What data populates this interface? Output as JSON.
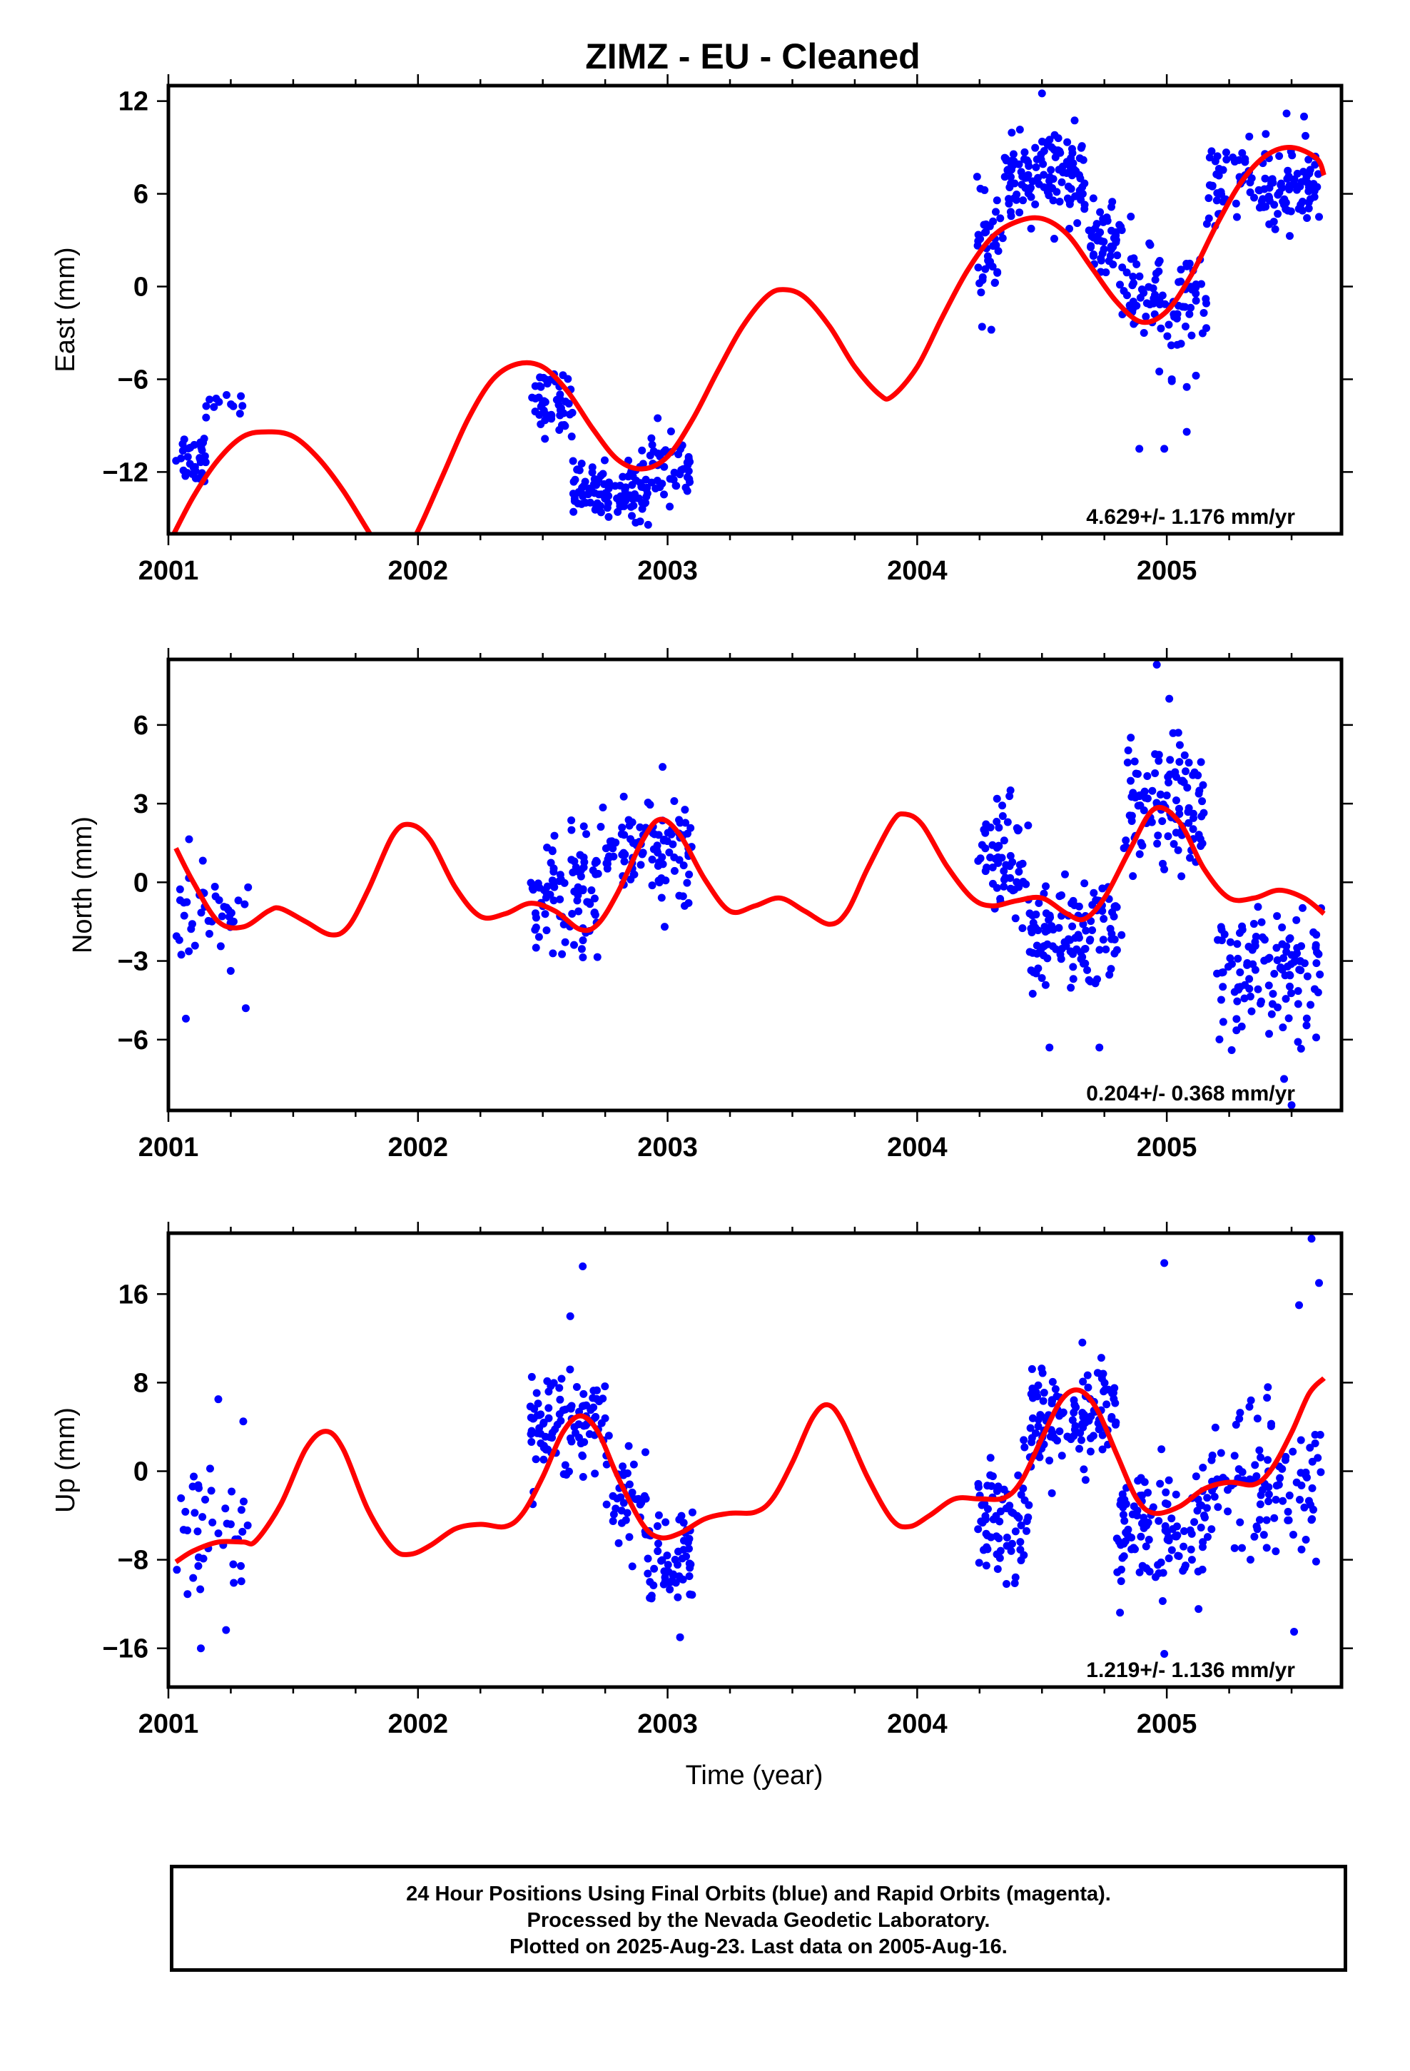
{
  "title": "ZIMZ  - EU - Cleaned",
  "chart_data": [
    {
      "type": "scatter",
      "name": "east",
      "ylabel": "East (mm)",
      "xlabel": "",
      "xlim": [
        2001.0,
        2005.7
      ],
      "ylim": [
        -16,
        13
      ],
      "yticks": [
        -12,
        -6,
        0,
        6,
        12
      ],
      "xticks": [
        2001,
        2002,
        2003,
        2004,
        2005
      ],
      "rate_label": "4.629+/- 1.176 mm/yr",
      "data_clusters": [
        {
          "x_start": 2001.03,
          "x_end": 2001.15,
          "y_center": -11.0,
          "y_spread": 1.2,
          "n": 32
        },
        {
          "x_start": 2001.15,
          "x_end": 2001.32,
          "y_center": -7.5,
          "y_spread": 0.8,
          "n": 12
        },
        {
          "x_start": 2002.45,
          "x_end": 2002.62,
          "y_center": -7.5,
          "y_spread": 1.3,
          "n": 50
        },
        {
          "x_start": 2002.62,
          "x_end": 2002.92,
          "y_center": -13.2,
          "y_spread": 1.2,
          "n": 110
        },
        {
          "x_start": 2002.92,
          "x_end": 2003.1,
          "y_center": -11.5,
          "y_spread": 1.5,
          "n": 45
        },
        {
          "x_start": 2004.24,
          "x_end": 2004.35,
          "y_center": 2.0,
          "y_spread": 2.5,
          "n": 40
        },
        {
          "x_start": 2004.35,
          "x_end": 2004.68,
          "y_center": 7.0,
          "y_spread": 1.8,
          "n": 130
        },
        {
          "x_start": 2004.68,
          "x_end": 2004.82,
          "y_center": 3.0,
          "y_spread": 1.5,
          "n": 50
        },
        {
          "x_start": 2004.82,
          "x_end": 2005.16,
          "y_center": -1.0,
          "y_spread": 2.4,
          "n": 90
        },
        {
          "x_start": 2005.16,
          "x_end": 2005.62,
          "y_center": 6.5,
          "y_spread": 1.8,
          "n": 130
        }
      ],
      "outliers": [
        [
          2004.5,
          12.5
        ],
        [
          2004.89,
          -10.5
        ],
        [
          2004.99,
          -10.5
        ],
        [
          2005.08,
          -9.4
        ],
        [
          2005.08,
          -6.5
        ],
        [
          2005.02,
          -6.0
        ],
        [
          2004.97,
          -5.5
        ],
        [
          2005.55,
          11.0
        ],
        [
          2005.48,
          11.2
        ],
        [
          2004.26,
          -2.6
        ]
      ],
      "model_curve": [
        [
          2001.0,
          -16.7
        ],
        [
          2001.1,
          -13.6
        ],
        [
          2001.2,
          -11.2
        ],
        [
          2001.3,
          -9.7
        ],
        [
          2001.4,
          -9.4
        ],
        [
          2001.5,
          -9.7
        ],
        [
          2001.6,
          -11.1
        ],
        [
          2001.7,
          -13.2
        ],
        [
          2001.8,
          -15.8
        ],
        [
          2001.85,
          -17.0
        ],
        [
          2001.95,
          -17.0
        ],
        [
          2002.0,
          -15.8
        ],
        [
          2002.1,
          -12.2
        ],
        [
          2002.2,
          -8.6
        ],
        [
          2002.3,
          -6.0
        ],
        [
          2002.4,
          -5.0
        ],
        [
          2002.5,
          -5.2
        ],
        [
          2002.6,
          -6.8
        ],
        [
          2002.7,
          -9.2
        ],
        [
          2002.8,
          -11.2
        ],
        [
          2002.9,
          -11.8
        ],
        [
          2003.0,
          -11.0
        ],
        [
          2003.1,
          -8.6
        ],
        [
          2003.2,
          -5.5
        ],
        [
          2003.3,
          -2.6
        ],
        [
          2003.4,
          -0.6
        ],
        [
          2003.47,
          -0.2
        ],
        [
          2003.55,
          -0.7
        ],
        [
          2003.65,
          -2.6
        ],
        [
          2003.75,
          -5.2
        ],
        [
          2003.85,
          -7.0
        ],
        [
          2003.9,
          -7.1
        ],
        [
          2004.0,
          -5.2
        ],
        [
          2004.1,
          -2.0
        ],
        [
          2004.2,
          1.0
        ],
        [
          2004.3,
          3.2
        ],
        [
          2004.4,
          4.2
        ],
        [
          2004.5,
          4.4
        ],
        [
          2004.6,
          3.4
        ],
        [
          2004.7,
          1.2
        ],
        [
          2004.8,
          -1.0
        ],
        [
          2004.9,
          -2.3
        ],
        [
          2005.0,
          -1.6
        ],
        [
          2005.1,
          0.8
        ],
        [
          2005.2,
          4.0
        ],
        [
          2005.3,
          6.8
        ],
        [
          2005.4,
          8.5
        ],
        [
          2005.5,
          9.0
        ],
        [
          2005.6,
          8.3
        ],
        [
          2005.63,
          7.2
        ]
      ]
    },
    {
      "type": "scatter",
      "name": "north",
      "ylabel": "North (mm)",
      "xlabel": "",
      "xlim": [
        2001.0,
        2005.7
      ],
      "ylim": [
        -8.7,
        8.5
      ],
      "yticks": [
        -6,
        -3,
        0,
        3,
        6
      ],
      "xticks": [
        2001,
        2002,
        2003,
        2004,
        2005
      ],
      "rate_label": "0.204+/- 0.368 mm/yr",
      "data_clusters": [
        {
          "x_start": 2001.03,
          "x_end": 2001.32,
          "y_center": -1.2,
          "y_spread": 1.2,
          "n": 40
        },
        {
          "x_start": 2002.45,
          "x_end": 2002.72,
          "y_center": -0.5,
          "y_spread": 1.5,
          "n": 90
        },
        {
          "x_start": 2002.72,
          "x_end": 2003.1,
          "y_center": 1.3,
          "y_spread": 1.4,
          "n": 110
        },
        {
          "x_start": 2004.24,
          "x_end": 2004.45,
          "y_center": 1.0,
          "y_spread": 1.4,
          "n": 60
        },
        {
          "x_start": 2004.45,
          "x_end": 2004.82,
          "y_center": -2.2,
          "y_spread": 1.5,
          "n": 120
        },
        {
          "x_start": 2004.82,
          "x_end": 2005.15,
          "y_center": 2.8,
          "y_spread": 1.7,
          "n": 110
        },
        {
          "x_start": 2005.2,
          "x_end": 2005.62,
          "y_center": -3.4,
          "y_spread": 1.5,
          "n": 120
        }
      ],
      "outliers": [
        [
          2001.07,
          -5.2
        ],
        [
          2001.31,
          -4.8
        ],
        [
          2004.96,
          8.3
        ],
        [
          2004.53,
          -6.3
        ],
        [
          2004.73,
          -6.3
        ],
        [
          2005.5,
          -8.5
        ],
        [
          2005.47,
          -7.5
        ],
        [
          2005.26,
          -6.4
        ],
        [
          2005.01,
          7.0
        ],
        [
          2002.98,
          4.4
        ]
      ],
      "model_curve": [
        [
          2001.03,
          1.3
        ],
        [
          2001.1,
          0.0
        ],
        [
          2001.2,
          -1.5
        ],
        [
          2001.3,
          -1.7
        ],
        [
          2001.4,
          -1.1
        ],
        [
          2001.45,
          -1.0
        ],
        [
          2001.55,
          -1.5
        ],
        [
          2001.65,
          -2.0
        ],
        [
          2001.72,
          -1.7
        ],
        [
          2001.8,
          -0.3
        ],
        [
          2001.9,
          1.8
        ],
        [
          2001.97,
          2.2
        ],
        [
          2002.05,
          1.6
        ],
        [
          2002.15,
          -0.2
        ],
        [
          2002.25,
          -1.3
        ],
        [
          2002.35,
          -1.2
        ],
        [
          2002.45,
          -0.8
        ],
        [
          2002.55,
          -1.1
        ],
        [
          2002.65,
          -1.8
        ],
        [
          2002.72,
          -1.6
        ],
        [
          2002.8,
          -0.4
        ],
        [
          2002.9,
          1.6
        ],
        [
          2002.97,
          2.4
        ],
        [
          2003.05,
          1.8
        ],
        [
          2003.15,
          0.1
        ],
        [
          2003.25,
          -1.1
        ],
        [
          2003.35,
          -0.9
        ],
        [
          2003.45,
          -0.6
        ],
        [
          2003.55,
          -1.1
        ],
        [
          2003.65,
          -1.6
        ],
        [
          2003.72,
          -1.1
        ],
        [
          2003.8,
          0.5
        ],
        [
          2003.9,
          2.3
        ],
        [
          2003.95,
          2.6
        ],
        [
          2004.02,
          2.2
        ],
        [
          2004.12,
          0.6
        ],
        [
          2004.22,
          -0.6
        ],
        [
          2004.3,
          -0.9
        ],
        [
          2004.4,
          -0.7
        ],
        [
          2004.5,
          -0.6
        ],
        [
          2004.6,
          -1.2
        ],
        [
          2004.67,
          -1.4
        ],
        [
          2004.75,
          -0.6
        ],
        [
          2004.85,
          1.2
        ],
        [
          2004.95,
          2.8
        ],
        [
          2005.05,
          2.3
        ],
        [
          2005.15,
          0.5
        ],
        [
          2005.25,
          -0.6
        ],
        [
          2005.35,
          -0.6
        ],
        [
          2005.45,
          -0.3
        ],
        [
          2005.55,
          -0.6
        ],
        [
          2005.63,
          -1.2
        ]
      ]
    },
    {
      "type": "scatter",
      "name": "up",
      "ylabel": "Up (mm)",
      "xlabel": "Time (year)",
      "xlim": [
        2001.0,
        2005.7
      ],
      "ylim": [
        -19.5,
        21.5
      ],
      "yticks": [
        -16,
        -8,
        0,
        8,
        16
      ],
      "xticks": [
        2001,
        2002,
        2003,
        2004,
        2005
      ],
      "rate_label": "1.219+/- 1.136 mm/yr",
      "data_clusters": [
        {
          "x_start": 2001.03,
          "x_end": 2001.32,
          "y_center": -6.5,
          "y_spread": 4.0,
          "n": 40
        },
        {
          "x_start": 2002.45,
          "x_end": 2002.75,
          "y_center": 4.5,
          "y_spread": 3.0,
          "n": 100
        },
        {
          "x_start": 2002.75,
          "x_end": 2002.92,
          "y_center": -2.0,
          "y_spread": 3.0,
          "n": 40
        },
        {
          "x_start": 2002.92,
          "x_end": 2003.1,
          "y_center": -8.5,
          "y_spread": 3.2,
          "n": 60
        },
        {
          "x_start": 2004.24,
          "x_end": 2004.45,
          "y_center": -4.0,
          "y_spread": 3.5,
          "n": 70
        },
        {
          "x_start": 2004.45,
          "x_end": 2004.8,
          "y_center": 4.5,
          "y_spread": 3.5,
          "n": 120
        },
        {
          "x_start": 2004.8,
          "x_end": 2005.15,
          "y_center": -5.5,
          "y_spread": 4.0,
          "n": 110
        },
        {
          "x_start": 2005.15,
          "x_end": 2005.62,
          "y_center": -1.5,
          "y_spread": 5.0,
          "n": 110
        }
      ],
      "outliers": [
        [
          2002.66,
          18.5
        ],
        [
          2004.99,
          18.8
        ],
        [
          2005.58,
          21.0
        ],
        [
          2005.61,
          17.0
        ],
        [
          2005.53,
          15.0
        ],
        [
          2002.61,
          14.0
        ],
        [
          2001.13,
          -16.0
        ],
        [
          2004.99,
          -16.5
        ],
        [
          2003.05,
          -15.0
        ],
        [
          2005.51,
          -14.5
        ],
        [
          2001.2,
          6.5
        ],
        [
          2001.3,
          4.5
        ]
      ],
      "model_curve": [
        [
          2001.03,
          -8.2
        ],
        [
          2001.1,
          -7.2
        ],
        [
          2001.2,
          -6.4
        ],
        [
          2001.3,
          -6.4
        ],
        [
          2001.35,
          -6.3
        ],
        [
          2001.45,
          -3.0
        ],
        [
          2001.55,
          2.0
        ],
        [
          2001.63,
          3.6
        ],
        [
          2001.7,
          2.0
        ],
        [
          2001.8,
          -3.5
        ],
        [
          2001.9,
          -7.0
        ],
        [
          2001.97,
          -7.5
        ],
        [
          2002.05,
          -6.7
        ],
        [
          2002.15,
          -5.2
        ],
        [
          2002.25,
          -4.8
        ],
        [
          2002.35,
          -5.0
        ],
        [
          2002.42,
          -3.8
        ],
        [
          2002.5,
          -0.5
        ],
        [
          2002.58,
          3.5
        ],
        [
          2002.65,
          5.0
        ],
        [
          2002.72,
          3.6
        ],
        [
          2002.8,
          -0.5
        ],
        [
          2002.9,
          -4.8
        ],
        [
          2002.97,
          -6.0
        ],
        [
          2003.05,
          -5.6
        ],
        [
          2003.15,
          -4.3
        ],
        [
          2003.25,
          -3.8
        ],
        [
          2003.35,
          -3.7
        ],
        [
          2003.42,
          -2.5
        ],
        [
          2003.5,
          0.8
        ],
        [
          2003.58,
          4.8
        ],
        [
          2003.64,
          6.0
        ],
        [
          2003.7,
          4.5
        ],
        [
          2003.8,
          -0.5
        ],
        [
          2003.9,
          -4.4
        ],
        [
          2003.97,
          -5.0
        ],
        [
          2004.05,
          -4.0
        ],
        [
          2004.15,
          -2.5
        ],
        [
          2004.25,
          -2.5
        ],
        [
          2004.35,
          -2.4
        ],
        [
          2004.42,
          -0.8
        ],
        [
          2004.5,
          3.0
        ],
        [
          2004.58,
          6.5
        ],
        [
          2004.65,
          7.3
        ],
        [
          2004.72,
          5.6
        ],
        [
          2004.8,
          1.5
        ],
        [
          2004.88,
          -2.5
        ],
        [
          2004.95,
          -3.8
        ],
        [
          2005.05,
          -3.2
        ],
        [
          2005.15,
          -1.6
        ],
        [
          2005.25,
          -1.0
        ],
        [
          2005.35,
          -1.2
        ],
        [
          2005.42,
          0.2
        ],
        [
          2005.5,
          3.5
        ],
        [
          2005.57,
          7.0
        ],
        [
          2005.63,
          8.4
        ]
      ]
    }
  ],
  "footer": {
    "line1": "24 Hour Positions Using Final Orbits (blue) and Rapid Orbits (magenta).",
    "line2": "Processed by the Nevada Geodetic Laboratory.",
    "line3": "Plotted on 2025-Aug-23. Last data on 2005-Aug-16."
  },
  "colors": {
    "points": "#0000ff",
    "model": "#ff0000",
    "frame": "#000000"
  }
}
